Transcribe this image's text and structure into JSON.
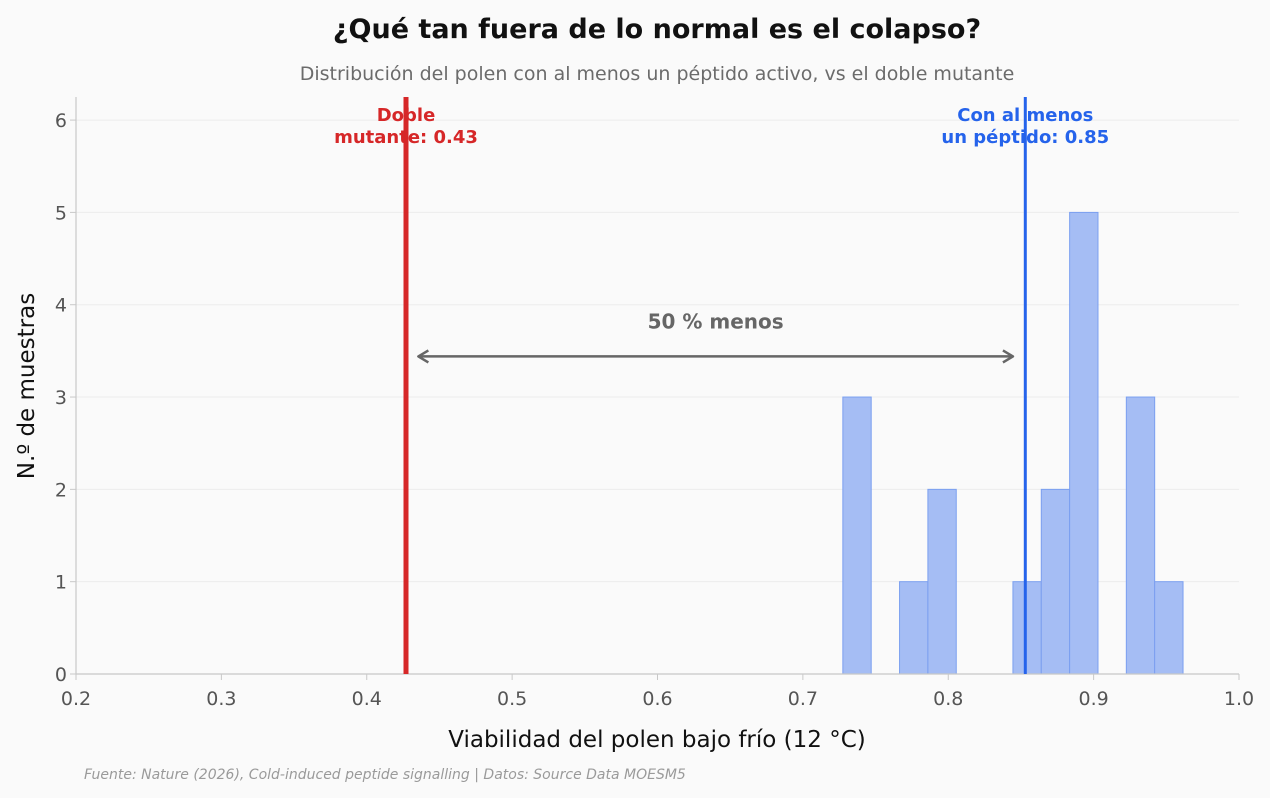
{
  "chart_data": {
    "type": "bar",
    "title": "¿Qué tan fuera de lo normal es el colapso?",
    "subtitle": "Distribución del polen con al menos un péptido activo, vs el doble mutante",
    "xlabel": "Viabilidad del polen bajo frío (12 °C)",
    "ylabel": "N.º de muestras",
    "xlim": [
      0.2,
      1.0
    ],
    "ylim": [
      0,
      6.25
    ],
    "xticks": [
      "0.2",
      "0.3",
      "0.4",
      "0.5",
      "0.6",
      "0.7",
      "0.8",
      "0.9",
      "1.0"
    ],
    "yticks": [
      "0",
      "1",
      "2",
      "3",
      "4",
      "5",
      "6"
    ],
    "grid": "horizontal",
    "bin_width": 0.0195,
    "bins": [
      {
        "x0": 0.7275,
        "count": 3
      },
      {
        "x0": 0.747,
        "count": 0
      },
      {
        "x0": 0.7665,
        "count": 1
      },
      {
        "x0": 0.786,
        "count": 2
      },
      {
        "x0": 0.8055,
        "count": 0
      },
      {
        "x0": 0.825,
        "count": 0
      },
      {
        "x0": 0.8445,
        "count": 1
      },
      {
        "x0": 0.864,
        "count": 2
      },
      {
        "x0": 0.8835,
        "count": 5
      },
      {
        "x0": 0.903,
        "count": 0
      },
      {
        "x0": 0.9225,
        "count": 3
      },
      {
        "x0": 0.942,
        "count": 1
      }
    ],
    "reference_lines": [
      {
        "value": 0.427,
        "label_line1": "Doble",
        "label_line2": "mutante: 0.43",
        "color": "#d62728"
      },
      {
        "value": 0.853,
        "label_line1": "Con al menos",
        "label_line2": "un péptido: 0.85",
        "color": "#2563eb"
      }
    ],
    "annotation": {
      "text": "50 % menos",
      "from": 0.43,
      "to": 0.85,
      "y": 3.44
    },
    "colors": {
      "bar_fill": "#a5bdf4",
      "bar_edge": "#7b9ff0",
      "axis": "#c8c8c8",
      "grid": "#ececec",
      "arrow": "#666666"
    }
  },
  "source_text": "Fuente: Nature (2026), Cold-induced peptide signalling | Datos: Source Data MOESM5"
}
